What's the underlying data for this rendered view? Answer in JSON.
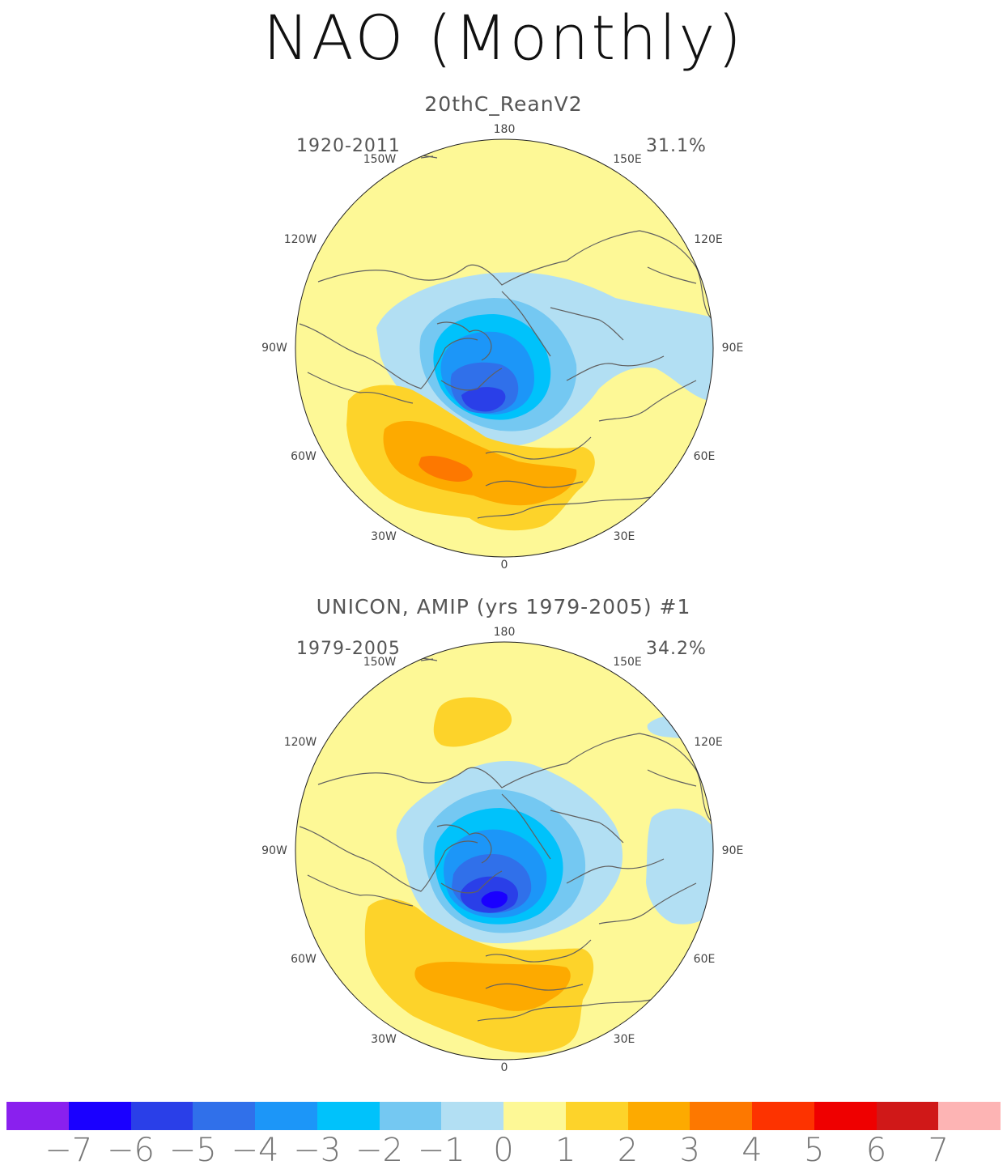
{
  "title": "NAO (Monthly)",
  "panels": [
    {
      "title": "20thC_ReanV2",
      "years": "1920-2011",
      "percent": "31.1%"
    },
    {
      "title": "UNICON, AMIP (yrs 1979-2005)    #1",
      "years": "1979-2005",
      "percent": "34.2%"
    }
  ],
  "lon_labels": [
    "180",
    "150W",
    "150E",
    "120W",
    "120E",
    "90W",
    "90E",
    "60W",
    "60E",
    "30W",
    "30E",
    "0"
  ],
  "colorbar": {
    "colors": [
      "#8a20ee",
      "#1a00ff",
      "#2a3fe8",
      "#3070ea",
      "#1c96f8",
      "#00c2fb",
      "#74c8f2",
      "#b2dff3",
      "#fdf896",
      "#fdd32a",
      "#fdaa00",
      "#fd7800",
      "#fd3300",
      "#ef0000",
      "#d01818",
      "#fdb4b4"
    ],
    "labels": [
      "-7",
      "-6",
      "-5",
      "-4",
      "-3",
      "-2",
      "-1",
      "0",
      "1",
      "2",
      "3",
      "4",
      "5",
      "6",
      "7"
    ]
  },
  "map": {
    "background_color": "#fdf896",
    "coast_color": "#606060"
  }
}
